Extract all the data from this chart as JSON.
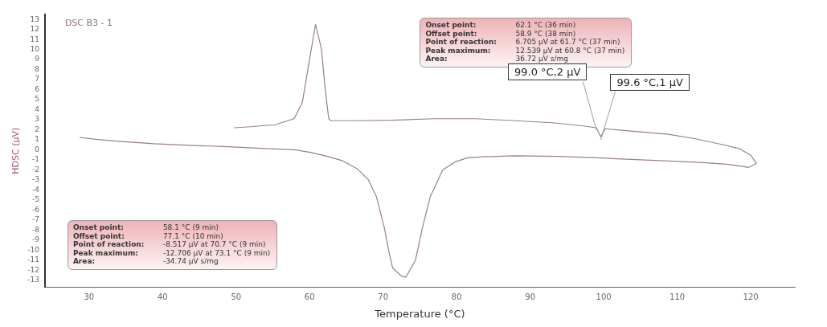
{
  "chart_data": {
    "type": "line",
    "title": "DSC B3 - 1",
    "xlabel": "Temperature (°C)",
    "ylabel": "HDSC (µV)",
    "xlim": [
      24,
      126
    ],
    "xticks": [
      30,
      40,
      50,
      60,
      70,
      80,
      90,
      100,
      110,
      120
    ],
    "ylim": [
      -13.7,
      13.5
    ],
    "yticks": [
      -13,
      -12,
      -11,
      -10,
      -9,
      -8,
      -7,
      -6,
      -5,
      -4,
      -3,
      -2,
      -1,
      0,
      1,
      2,
      3,
      4,
      5,
      6,
      7,
      8,
      9,
      10,
      11,
      12,
      13
    ],
    "grid": false,
    "legend": false,
    "marker": "none",
    "line_style": "solid",
    "series": [
      {
        "color": "#9a7f85",
        "x": [
          28.7,
          30.9,
          34,
          38.8,
          43.8,
          48.9,
          53.4,
          57.9,
          60.1,
          62.4,
          64.5,
          66.5,
          68,
          69.1,
          70.2,
          70.8,
          71.3,
          72.5,
          73.1,
          74.4,
          75.3,
          76.4,
          78.1,
          79.8,
          81.5,
          83.7,
          88,
          93.8,
          99,
          105,
          110,
          114,
          117,
          119.7,
          120.8
        ],
        "values": [
          1.24,
          1.05,
          0.85,
          0.6,
          0.45,
          0.3,
          0.15,
          0,
          -0.25,
          -0.65,
          -1.1,
          -1.9,
          -3,
          -4.7,
          -7.9,
          -10.2,
          -11.8,
          -12.6,
          -12.7,
          -11,
          -7.9,
          -4.7,
          -2,
          -1.2,
          -0.8,
          -0.7,
          -0.6,
          -0.65,
          -0.8,
          -1,
          -1.15,
          -1.3,
          -1.45,
          -1.75,
          -1.35
        ]
      },
      {
        "color": "#9a7f85",
        "x": [
          49.7,
          52,
          55.3,
          57.9,
          59,
          59.9,
          60.8,
          61.6,
          62.1,
          62.6,
          62.9,
          66,
          71.3,
          77,
          82.6,
          88,
          93,
          97,
          99,
          99.6,
          100.2,
          104,
          108.8,
          112.5,
          116.3,
          118.5,
          120,
          120.8
        ],
        "values": [
          2.2,
          2.3,
          2.5,
          3.1,
          4.7,
          8.6,
          12.5,
          10.1,
          6.2,
          3.1,
          2.9,
          2.9,
          2.95,
          3.1,
          3.1,
          2.9,
          2.7,
          2.4,
          2.2,
          1.3,
          2.1,
          1.85,
          1.55,
          1.1,
          0.5,
          0.1,
          -0.55,
          -1.35
        ]
      }
    ],
    "annotations": [
      "Onset point:\t62.1 °C (36 min)\nOffset point:\t58.9 °C (38 min)\nPoint of reaction:\t6.705 µV at 61.7 °C (37 min)\nPeak maximum:\t12.539 µV at 60.8 °C (37 min)\nArea:\t36.72 µV s/mg",
      "Onset point:\t58.1 °C (9 min)\nOffset point:\t77.1 °C (10 min)\nPoint of reaction:\t-8.517 µV at 70.7 °C (9 min)\nPeak maximum:\t-12.706 µV at 73.1 °C (9 min)\nArea:\t-34.74 µV s/mg",
      {
        "text": "99.0 °C,2 µV",
        "x": 99.0,
        "y": 2
      },
      {
        "text": "99.6 °C,1 µV",
        "x": 99.6,
        "y": 1
      }
    ]
  }
}
